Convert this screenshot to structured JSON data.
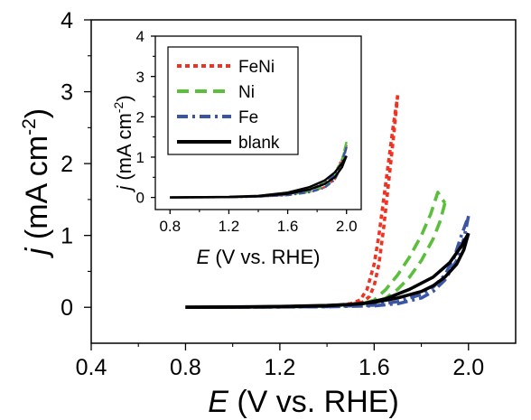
{
  "chart_data": [
    {
      "id": "main",
      "type": "line",
      "xlabel": {
        "italic": "E",
        "rest": " (V vs. RHE)"
      },
      "ylabel": {
        "italic": "j",
        "rest": " (mA cm",
        "sup": "-2",
        "close": ")"
      },
      "xlim": [
        0.4,
        2.2
      ],
      "ylim": [
        -0.5,
        4.0
      ],
      "xticks": [
        0.4,
        0.8,
        1.2,
        1.6,
        2.0
      ],
      "xtick_labels": [
        "0.4",
        "0.8",
        "1.2",
        "1.6",
        "2.0"
      ],
      "yticks": [
        0,
        1,
        2,
        3,
        4
      ],
      "ytick_labels": [
        "0",
        "1",
        "2",
        "3",
        "4"
      ],
      "series": [
        {
          "name": "FeNi",
          "color": "#ee3323",
          "dash": "short-dash",
          "forward": [
            [
              0.8,
              0
            ],
            [
              1.0,
              0.003
            ],
            [
              1.2,
              0.008
            ],
            [
              1.35,
              0.015
            ],
            [
              1.45,
              0.03
            ],
            [
              1.5,
              0.05
            ],
            [
              1.54,
              0.1
            ],
            [
              1.57,
              0.25
            ],
            [
              1.6,
              0.6
            ],
            [
              1.62,
              1.0
            ],
            [
              1.64,
              1.5
            ],
            [
              1.66,
              2.0
            ],
            [
              1.68,
              2.5
            ],
            [
              1.7,
              2.95
            ]
          ],
          "backward": [
            [
              1.7,
              2.95
            ],
            [
              1.68,
              2.3
            ],
            [
              1.66,
              1.7
            ],
            [
              1.64,
              1.1
            ],
            [
              1.62,
              0.6
            ],
            [
              1.6,
              0.3
            ],
            [
              1.58,
              0.15
            ],
            [
              1.55,
              0.07
            ],
            [
              1.5,
              0.04
            ],
            [
              1.4,
              0.02
            ],
            [
              1.2,
              0.008
            ],
            [
              1.0,
              0.002
            ],
            [
              0.8,
              0
            ]
          ]
        },
        {
          "name": "Ni",
          "color": "#5cbf3c",
          "dash": "long-dash",
          "forward": [
            [
              0.8,
              0
            ],
            [
              1.0,
              0.002
            ],
            [
              1.2,
              0.006
            ],
            [
              1.4,
              0.015
            ],
            [
              1.55,
              0.05
            ],
            [
              1.6,
              0.1
            ],
            [
              1.65,
              0.25
            ],
            [
              1.7,
              0.45
            ],
            [
              1.75,
              0.7
            ],
            [
              1.8,
              1.0
            ],
            [
              1.84,
              1.3
            ],
            [
              1.87,
              1.6
            ],
            [
              1.9,
              1.45
            ]
          ],
          "backward": [
            [
              1.9,
              1.45
            ],
            [
              1.88,
              1.2
            ],
            [
              1.85,
              0.95
            ],
            [
              1.8,
              0.65
            ],
            [
              1.75,
              0.42
            ],
            [
              1.7,
              0.25
            ],
            [
              1.65,
              0.13
            ],
            [
              1.6,
              0.07
            ],
            [
              1.5,
              0.03
            ],
            [
              1.3,
              0.01
            ],
            [
              1.0,
              0.002
            ],
            [
              0.8,
              0
            ]
          ]
        },
        {
          "name": "Fe",
          "color": "#3a55a4",
          "dash": "dash-dot",
          "forward": [
            [
              0.8,
              0
            ],
            [
              1.0,
              0.002
            ],
            [
              1.2,
              0.005
            ],
            [
              1.4,
              0.01
            ],
            [
              1.6,
              0.03
            ],
            [
              1.7,
              0.08
            ],
            [
              1.8,
              0.18
            ],
            [
              1.85,
              0.28
            ],
            [
              1.9,
              0.45
            ],
            [
              1.94,
              0.7
            ],
            [
              1.97,
              1.0
            ],
            [
              2.0,
              1.27
            ]
          ],
          "backward": [
            [
              2.0,
              1.27
            ],
            [
              1.98,
              0.95
            ],
            [
              1.95,
              0.65
            ],
            [
              1.9,
              0.38
            ],
            [
              1.85,
              0.22
            ],
            [
              1.8,
              0.13
            ],
            [
              1.7,
              0.05
            ],
            [
              1.6,
              0.02
            ],
            [
              1.4,
              0.008
            ],
            [
              1.2,
              0.004
            ],
            [
              1.0,
              0.001
            ],
            [
              0.8,
              0
            ]
          ]
        },
        {
          "name": "blank",
          "color": "#000000",
          "dash": "solid",
          "forward": [
            [
              0.8,
              0
            ],
            [
              1.0,
              0.003
            ],
            [
              1.2,
              0.008
            ],
            [
              1.4,
              0.02
            ],
            [
              1.55,
              0.05
            ],
            [
              1.65,
              0.12
            ],
            [
              1.75,
              0.25
            ],
            [
              1.85,
              0.42
            ],
            [
              1.92,
              0.62
            ],
            [
              1.97,
              0.85
            ],
            [
              2.0,
              1.03
            ]
          ],
          "backward": [
            [
              2.0,
              1.03
            ],
            [
              1.98,
              0.8
            ],
            [
              1.95,
              0.6
            ],
            [
              1.9,
              0.42
            ],
            [
              1.85,
              0.3
            ],
            [
              1.8,
              0.22
            ],
            [
              1.7,
              0.13
            ],
            [
              1.6,
              0.07
            ],
            [
              1.5,
              0.04
            ],
            [
              1.4,
              0.025
            ],
            [
              1.2,
              0.012
            ],
            [
              1.0,
              0.005
            ],
            [
              0.8,
              0
            ]
          ]
        }
      ]
    },
    {
      "id": "inset",
      "type": "line",
      "xlabel": {
        "italic": "E",
        "rest": " (V vs. RHE)"
      },
      "ylabel": {
        "italic": "j",
        "rest": " (mA cm",
        "sup": "-2",
        "close": ")"
      },
      "xlim": [
        0.7,
        2.1
      ],
      "ylim": [
        -0.3,
        4.0
      ],
      "xticks": [
        0.8,
        1.2,
        1.6,
        2.0
      ],
      "xtick_labels": [
        "0.8",
        "1.2",
        "1.6",
        "2.0"
      ],
      "yticks": [
        0,
        1,
        2,
        3,
        4
      ],
      "ytick_labels": [
        "0",
        "1",
        "2",
        "3",
        "4"
      ],
      "legend": [
        "FeNi",
        "Ni",
        "Fe",
        "blank"
      ],
      "legend_placement": "top-left",
      "series": [
        {
          "name": "FeNi",
          "color": "#ee3323",
          "dash": "short-dash",
          "forward": [
            [
              0.8,
              0
            ],
            [
              1.2,
              0.01
            ],
            [
              1.4,
              0.03
            ],
            [
              1.6,
              0.1
            ],
            [
              1.75,
              0.22
            ],
            [
              1.85,
              0.38
            ],
            [
              1.92,
              0.6
            ],
            [
              1.97,
              0.95
            ],
            [
              2.0,
              1.3
            ]
          ],
          "backward": [
            [
              2.0,
              1.3
            ],
            [
              1.97,
              0.85
            ],
            [
              1.92,
              0.45
            ],
            [
              1.85,
              0.25
            ],
            [
              1.75,
              0.14
            ],
            [
              1.6,
              0.06
            ],
            [
              1.4,
              0.02
            ],
            [
              1.2,
              0.006
            ],
            [
              0.8,
              0
            ]
          ]
        },
        {
          "name": "Ni",
          "color": "#5cbf3c",
          "dash": "long-dash",
          "forward": [
            [
              0.8,
              0
            ],
            [
              1.2,
              0.01
            ],
            [
              1.4,
              0.03
            ],
            [
              1.6,
              0.09
            ],
            [
              1.75,
              0.2
            ],
            [
              1.85,
              0.36
            ],
            [
              1.92,
              0.58
            ],
            [
              1.97,
              0.95
            ],
            [
              2.0,
              1.38
            ]
          ],
          "backward": [
            [
              2.0,
              1.38
            ],
            [
              1.97,
              0.9
            ],
            [
              1.92,
              0.5
            ],
            [
              1.85,
              0.27
            ],
            [
              1.75,
              0.15
            ],
            [
              1.6,
              0.065
            ],
            [
              1.4,
              0.022
            ],
            [
              1.2,
              0.007
            ],
            [
              0.8,
              0
            ]
          ]
        },
        {
          "name": "Fe",
          "color": "#3a55a4",
          "dash": "dash-dot",
          "forward": [
            [
              0.8,
              0
            ],
            [
              1.2,
              0.008
            ],
            [
              1.4,
              0.025
            ],
            [
              1.6,
              0.08
            ],
            [
              1.75,
              0.19
            ],
            [
              1.85,
              0.34
            ],
            [
              1.92,
              0.55
            ],
            [
              1.97,
              0.9
            ],
            [
              2.0,
              1.25
            ]
          ],
          "backward": [
            [
              2.0,
              1.25
            ],
            [
              1.97,
              0.82
            ],
            [
              1.92,
              0.44
            ],
            [
              1.85,
              0.24
            ],
            [
              1.75,
              0.13
            ],
            [
              1.6,
              0.055
            ],
            [
              1.4,
              0.02
            ],
            [
              1.2,
              0.006
            ],
            [
              0.8,
              0
            ]
          ]
        },
        {
          "name": "blank",
          "color": "#000000",
          "dash": "solid",
          "forward": [
            [
              0.8,
              0
            ],
            [
              1.2,
              0.015
            ],
            [
              1.4,
              0.04
            ],
            [
              1.6,
              0.12
            ],
            [
              1.75,
              0.26
            ],
            [
              1.85,
              0.42
            ],
            [
              1.92,
              0.62
            ],
            [
              1.97,
              0.85
            ],
            [
              2.0,
              1.03
            ]
          ],
          "backward": [
            [
              2.0,
              1.03
            ],
            [
              1.97,
              0.75
            ],
            [
              1.92,
              0.5
            ],
            [
              1.85,
              0.33
            ],
            [
              1.75,
              0.2
            ],
            [
              1.6,
              0.09
            ],
            [
              1.4,
              0.03
            ],
            [
              1.2,
              0.01
            ],
            [
              0.8,
              0
            ]
          ]
        }
      ]
    }
  ]
}
